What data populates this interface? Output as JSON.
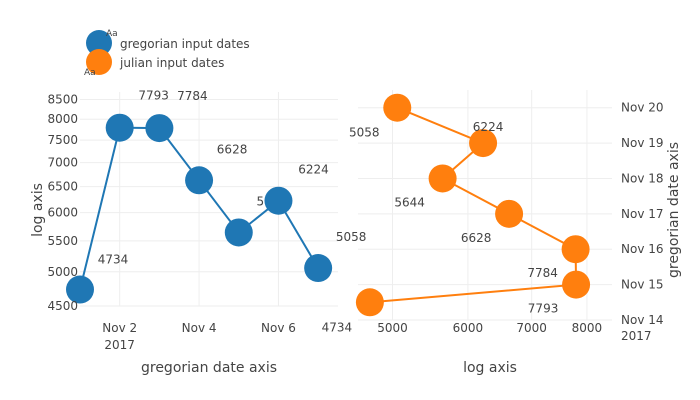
{
  "chart_data": [
    {
      "type": "scatter",
      "mode": "lines+markers+text",
      "series_name": "gregorian input dates",
      "color": "#1f77b4",
      "xlabel": "gregorian date axis",
      "ylabel": "log axis",
      "x_axis_type": "date",
      "y_axis_type": "log",
      "xlim": [
        "2017-11-01",
        "2017-11-07T12:00"
      ],
      "ylim": [
        4500,
        8700
      ],
      "x_ticks": [
        {
          "value": "2017-11-02",
          "label": "Nov 2",
          "sublabel": "2017"
        },
        {
          "value": "2017-11-04",
          "label": "Nov 4"
        },
        {
          "value": "2017-11-06",
          "label": "Nov 6"
        }
      ],
      "y_ticks": [
        {
          "value": 4500,
          "label": "4500"
        },
        {
          "value": 5000,
          "label": "5000"
        },
        {
          "value": 5500,
          "label": "5500"
        },
        {
          "value": 6000,
          "label": "6000"
        },
        {
          "value": 6500,
          "label": "6500"
        },
        {
          "value": 7000,
          "label": "7000"
        },
        {
          "value": 7500,
          "label": "7500"
        },
        {
          "value": 8000,
          "label": "8000"
        },
        {
          "value": 8500,
          "label": "8500"
        }
      ],
      "points": [
        {
          "x": "2017-11-01",
          "y": 4734,
          "label": "4734"
        },
        {
          "x": "2017-11-02",
          "y": 7793,
          "label": "7793"
        },
        {
          "x": "2017-11-03",
          "y": 7784,
          "label": "7784"
        },
        {
          "x": "2017-11-04",
          "y": 6628,
          "label": "6628"
        },
        {
          "x": "2017-11-05",
          "y": 5644,
          "label": "5644"
        },
        {
          "x": "2017-11-06",
          "y": 6224,
          "label": "6224"
        },
        {
          "x": "2017-11-07",
          "y": 5058,
          "label": "5058"
        }
      ]
    },
    {
      "type": "scatter",
      "mode": "lines+markers+text",
      "series_name": "julian input dates",
      "color": "#ff7f0e",
      "xlabel": "log axis",
      "ylabel": "gregorian date axis",
      "x_axis_type": "log",
      "y_axis_type": "date",
      "xlim": [
        4600,
        8500
      ],
      "ylim": [
        "2017-11-14",
        "2017-11-20T12:00"
      ],
      "x_ticks": [
        {
          "value": 5000,
          "label": "5000"
        },
        {
          "value": 6000,
          "label": "6000"
        },
        {
          "value": 7000,
          "label": "7000"
        },
        {
          "value": 8000,
          "label": "8000"
        }
      ],
      "y_ticks": [
        {
          "value": "2017-11-14",
          "label": "Nov 14",
          "sublabel": "2017"
        },
        {
          "value": "2017-11-15",
          "label": "Nov 15"
        },
        {
          "value": "2017-11-16",
          "label": "Nov 16"
        },
        {
          "value": "2017-11-17",
          "label": "Nov 17"
        },
        {
          "value": "2017-11-18",
          "label": "Nov 18"
        },
        {
          "value": "2017-11-19",
          "label": "Nov 19"
        },
        {
          "value": "2017-11-20",
          "label": "Nov 20"
        }
      ],
      "points": [
        {
          "x": 4734,
          "y": "2017-11-14T12:00",
          "label": "4734"
        },
        {
          "x": 7793,
          "y": "2017-11-15",
          "label": "7793"
        },
        {
          "x": 7784,
          "y": "2017-11-16",
          "label": "7784"
        },
        {
          "x": 6628,
          "y": "2017-11-17",
          "label": "6628"
        },
        {
          "x": 5644,
          "y": "2017-11-18",
          "label": "5644"
        },
        {
          "x": 6224,
          "y": "2017-11-19",
          "label": "6224"
        },
        {
          "x": 5058,
          "y": "2017-11-20",
          "label": "5058"
        }
      ]
    }
  ],
  "legend": {
    "placement": "top-left",
    "items": [
      {
        "label": "gregorian input dates",
        "color": "#1f77b4"
      },
      {
        "label": "julian input dates",
        "color": "#ff7f0e"
      }
    ],
    "marker_text": "Aa"
  },
  "grid": true
}
